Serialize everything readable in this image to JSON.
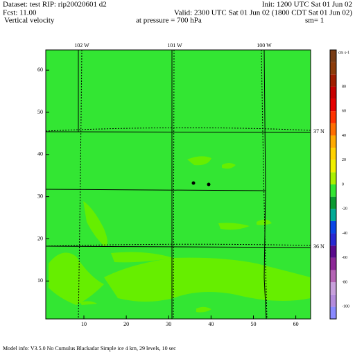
{
  "header": {
    "dataset": "Dataset: test   RIP: rip20020601 d2",
    "init": "Init: 1200 UTC Sat 01 Jun 02",
    "fcst": "Fcst:    11.00",
    "valid": "Valid: 2300 UTC Sat 01 Jun 02 (1800 CDT Sat 01 Jun 02)",
    "field": "Vertical velocity",
    "pressure": "at pressure =   700 hPa",
    "smooth": "sm= 1"
  },
  "map": {
    "xlim": [
      1,
      63.5
    ],
    "ylim": [
      1,
      64.8
    ],
    "xticks": [
      10,
      20,
      30,
      40,
      50,
      60
    ],
    "yticks": [
      10,
      20,
      30,
      40,
      50,
      60
    ],
    "longitudes": [
      "102 W",
      "101 W",
      "100 W"
    ],
    "latitudes": [
      "37 N",
      "36 N"
    ],
    "color": "#33e633"
  },
  "colorbar": {
    "unit": "cm s-1",
    "lim": [
      -110,
      110
    ],
    "ticks": [
      80,
      60,
      40,
      20,
      0,
      -20,
      -40,
      -60,
      -80,
      -100
    ],
    "colors": [
      "#8a8aff",
      "#b48cdc",
      "#c8a0dc",
      "#b464b4",
      "#8c2896",
      "#5a0a8c",
      "#2828d2",
      "#0a46e6",
      "#00aa96",
      "#0a9a32",
      "#33e633",
      "#aaf000",
      "#f0f000",
      "#ffd200",
      "#ffaa00",
      "#ff6e00",
      "#ff3200",
      "#e60000",
      "#c80000",
      "#a01e00",
      "#8c3c0a",
      "#783c14"
    ]
  },
  "footer": "Model info: V3.5.0 No Cumulus Blackadar  Simple ice    4 km,  29 levels,   10 sec"
}
